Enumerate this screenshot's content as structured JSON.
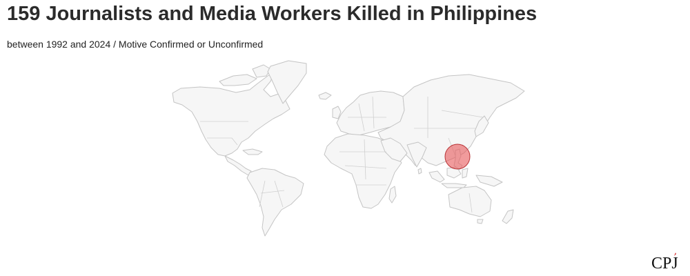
{
  "title": "159 Journalists and Media Workers Killed in Philippines",
  "subtitle": "between 1992 and 2024 / Motive Confirmed or Unconfirmed",
  "map": {
    "highlight_country": "Philippines",
    "marker_color": "#e8585a",
    "marker_stroke": "#b83336",
    "land_color": "#f6f6f6",
    "border_color": "#c4c4c4"
  },
  "logo": {
    "text": "CPJ",
    "accent_color": "#d62b2b"
  }
}
